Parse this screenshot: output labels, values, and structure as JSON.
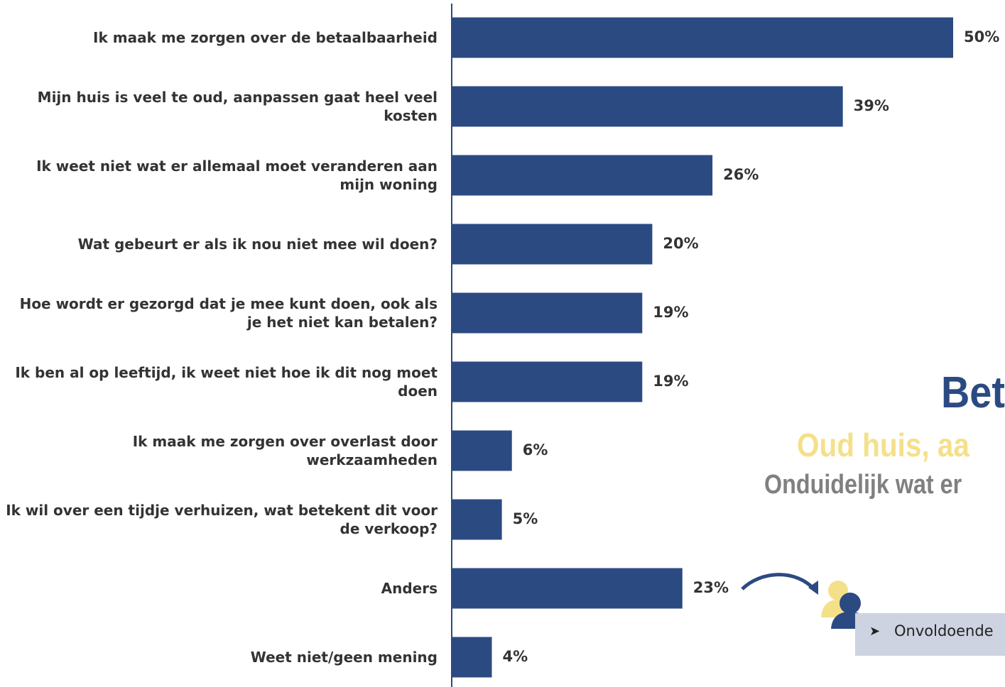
{
  "chart_data": {
    "type": "hbar",
    "categories": [
      "Ik maak me zorgen over de betaalbaarheid",
      "Mijn huis is veel te oud, aanpassen gaat heel veel kosten",
      "Ik weet niet wat er allemaal moet veranderen aan mijn woning",
      "Wat gebeurt er als ik nou niet mee wil doen?",
      "Hoe wordt er gezorgd dat je mee kunt doen, ook als je het niet kan betalen?",
      "Ik ben al op leeftijd, ik weet niet hoe ik dit nog moet doen",
      "Ik maak me zorgen over overlast door werkzaamheden",
      "Ik wil over een tijdje verhuizen, wat betekent dit voor de verkoop?",
      "Anders",
      "Weet niet/geen mening"
    ],
    "values": [
      50,
      39,
      26,
      20,
      19,
      19,
      6,
      5,
      23,
      4
    ],
    "value_labels": [
      "50%",
      "39%",
      "26%",
      "20%",
      "19%",
      "19%",
      "6%",
      "5%",
      "23%",
      "4%"
    ],
    "color": "#2c4a82",
    "xlim": [
      0,
      50
    ],
    "annotations": [
      "Bet",
      "Oud huis, aa",
      "Onduidelijk wat er",
      "Onvoldoende"
    ]
  }
}
